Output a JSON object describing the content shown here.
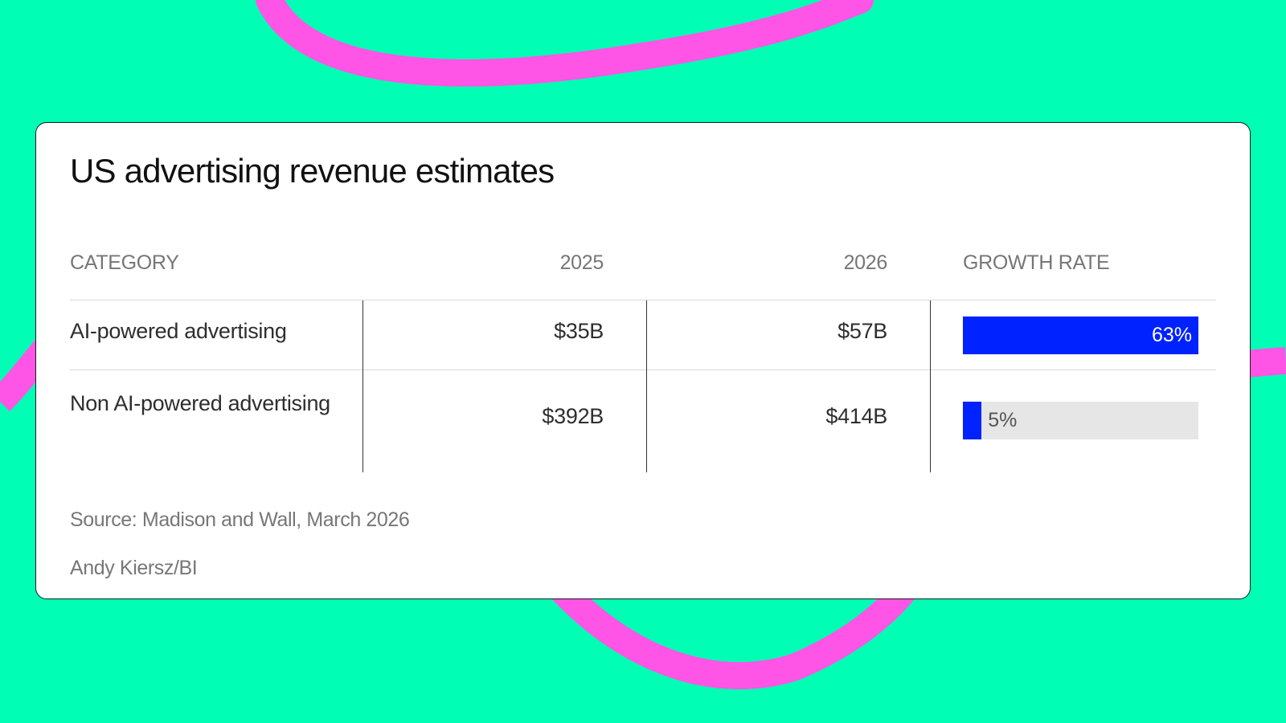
{
  "colors": {
    "background": "#00ffb4",
    "swoosh": "#ff55e6",
    "bar_fill": "#0022ff",
    "bar_track": "#e6e6e6"
  },
  "title": "US advertising revenue estimates",
  "headers": {
    "category": "CATEGORY",
    "year1": "2025",
    "year2": "2026",
    "growth": "GROWTH RATE"
  },
  "rows": [
    {
      "category": "AI-powered advertising",
      "y2025": "$35B",
      "y2026": "$57B",
      "growth_label": "63%"
    },
    {
      "category": "Non AI-powered advertising",
      "y2025": "$392B",
      "y2026": "$414B",
      "growth_label": "5%"
    }
  ],
  "source": "Source: Madison and Wall, March 2026",
  "credit": "Andy Kiersz/BI",
  "chart_data": {
    "type": "table",
    "title": "US advertising revenue estimates",
    "columns": [
      "CATEGORY",
      "2025",
      "2026",
      "GROWTH RATE"
    ],
    "categories": [
      "AI-powered advertising",
      "Non AI-powered advertising"
    ],
    "series": [
      {
        "name": "2025",
        "values": [
          35,
          392
        ]
      },
      {
        "name": "2026",
        "values": [
          57,
          414
        ]
      },
      {
        "name": "GROWTH RATE",
        "values": [
          63,
          5
        ]
      }
    ],
    "growth_bar_max": 63
  }
}
